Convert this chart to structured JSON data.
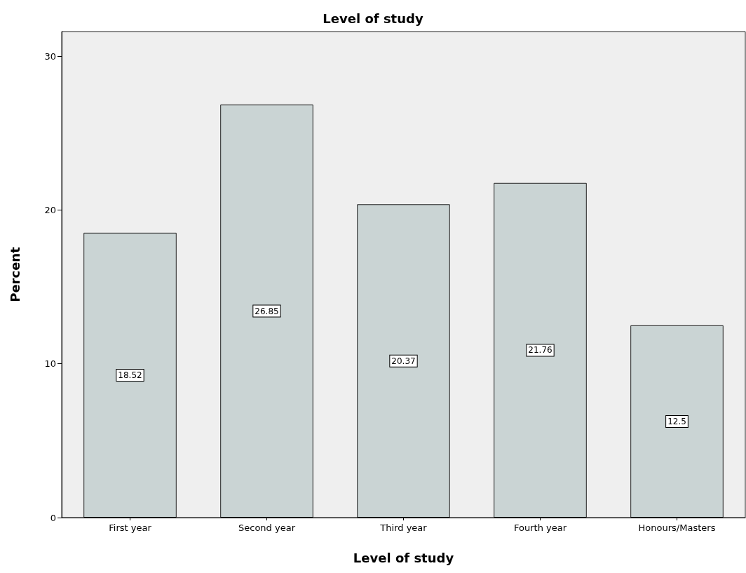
{
  "chart_data": {
    "type": "bar",
    "title": "Level of study",
    "xlabel": "Level of study",
    "ylabel": "Percent",
    "categories": [
      "First year",
      "Second year",
      "Third year",
      "Fourth year",
      "Honours/Masters"
    ],
    "values": [
      18.52,
      26.85,
      20.37,
      21.76,
      12.5
    ],
    "color": "#cad4d4",
    "ylim": [
      0,
      31.6
    ],
    "yticks": [
      0,
      10,
      20,
      30
    ],
    "grid": false,
    "data_labels": true
  }
}
